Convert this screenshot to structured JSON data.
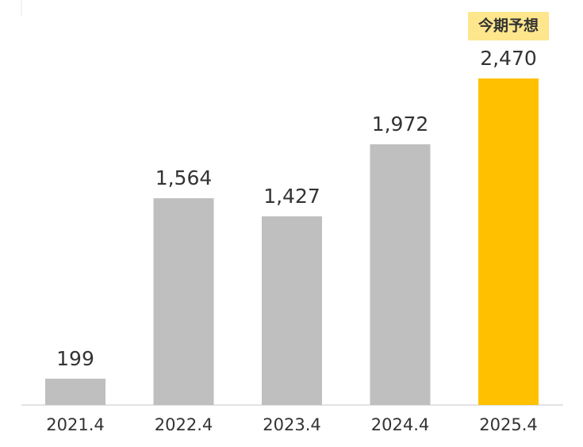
{
  "chart_data": {
    "type": "bar",
    "categories": [
      "2021.4",
      "2022.4",
      "2023.4",
      "2024.4",
      "2025.4"
    ],
    "values": [
      199,
      1564,
      1427,
      1972,
      2470
    ],
    "value_labels": [
      "199",
      "1,564",
      "1,427",
      "1,972",
      "2,470"
    ],
    "colors": [
      "#bfbfbf",
      "#bfbfbf",
      "#bfbfbf",
      "#bfbfbf",
      "#ffc000"
    ],
    "annotation": "今期予想"
  }
}
